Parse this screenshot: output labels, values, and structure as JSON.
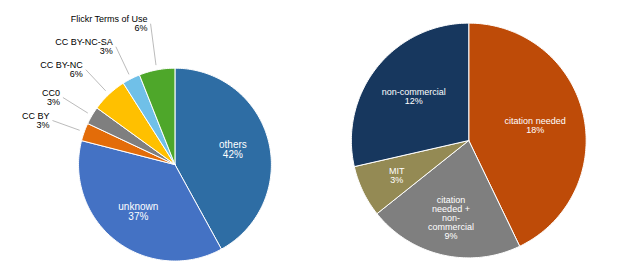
{
  "chart_data": [
    {
      "type": "pie",
      "categories": [
        "others",
        "unknown",
        "CC BY",
        "CC0",
        "CC BY-NC",
        "CC BY-NC-SA",
        "Flickr Terms of Use"
      ],
      "values": [
        42,
        37,
        3,
        3,
        6,
        3,
        6
      ],
      "colors": [
        "#2e6da4",
        "#4472c4",
        "#e36c09",
        "#7f7f7f",
        "#ffc000",
        "#70c0e8",
        "#4ea72a"
      ],
      "data_labels": true,
      "value_labels": [
        "others\n42%",
        "unknown\n37%",
        "CC BY\n3%",
        "CC0\n3%",
        "CC BY-NC\n6%",
        "CC BY-NC-SA\n3%",
        "Flickr Terms of Use\n6%"
      ]
    },
    {
      "type": "pie",
      "categories": [
        "citation needed",
        "citation needed + non-commercial",
        "MIT",
        "non-commercial"
      ],
      "values": [
        18,
        9,
        3,
        12
      ],
      "colors": [
        "#be4b08",
        "#7f7f7f",
        "#948a54",
        "#17375e"
      ],
      "data_labels": true,
      "value_labels": [
        "citation needed\n18%",
        "citation\nneeded +\nnon-\ncommercial\n9%",
        "MIT\n3%",
        "non-commercial\n12%"
      ]
    }
  ]
}
